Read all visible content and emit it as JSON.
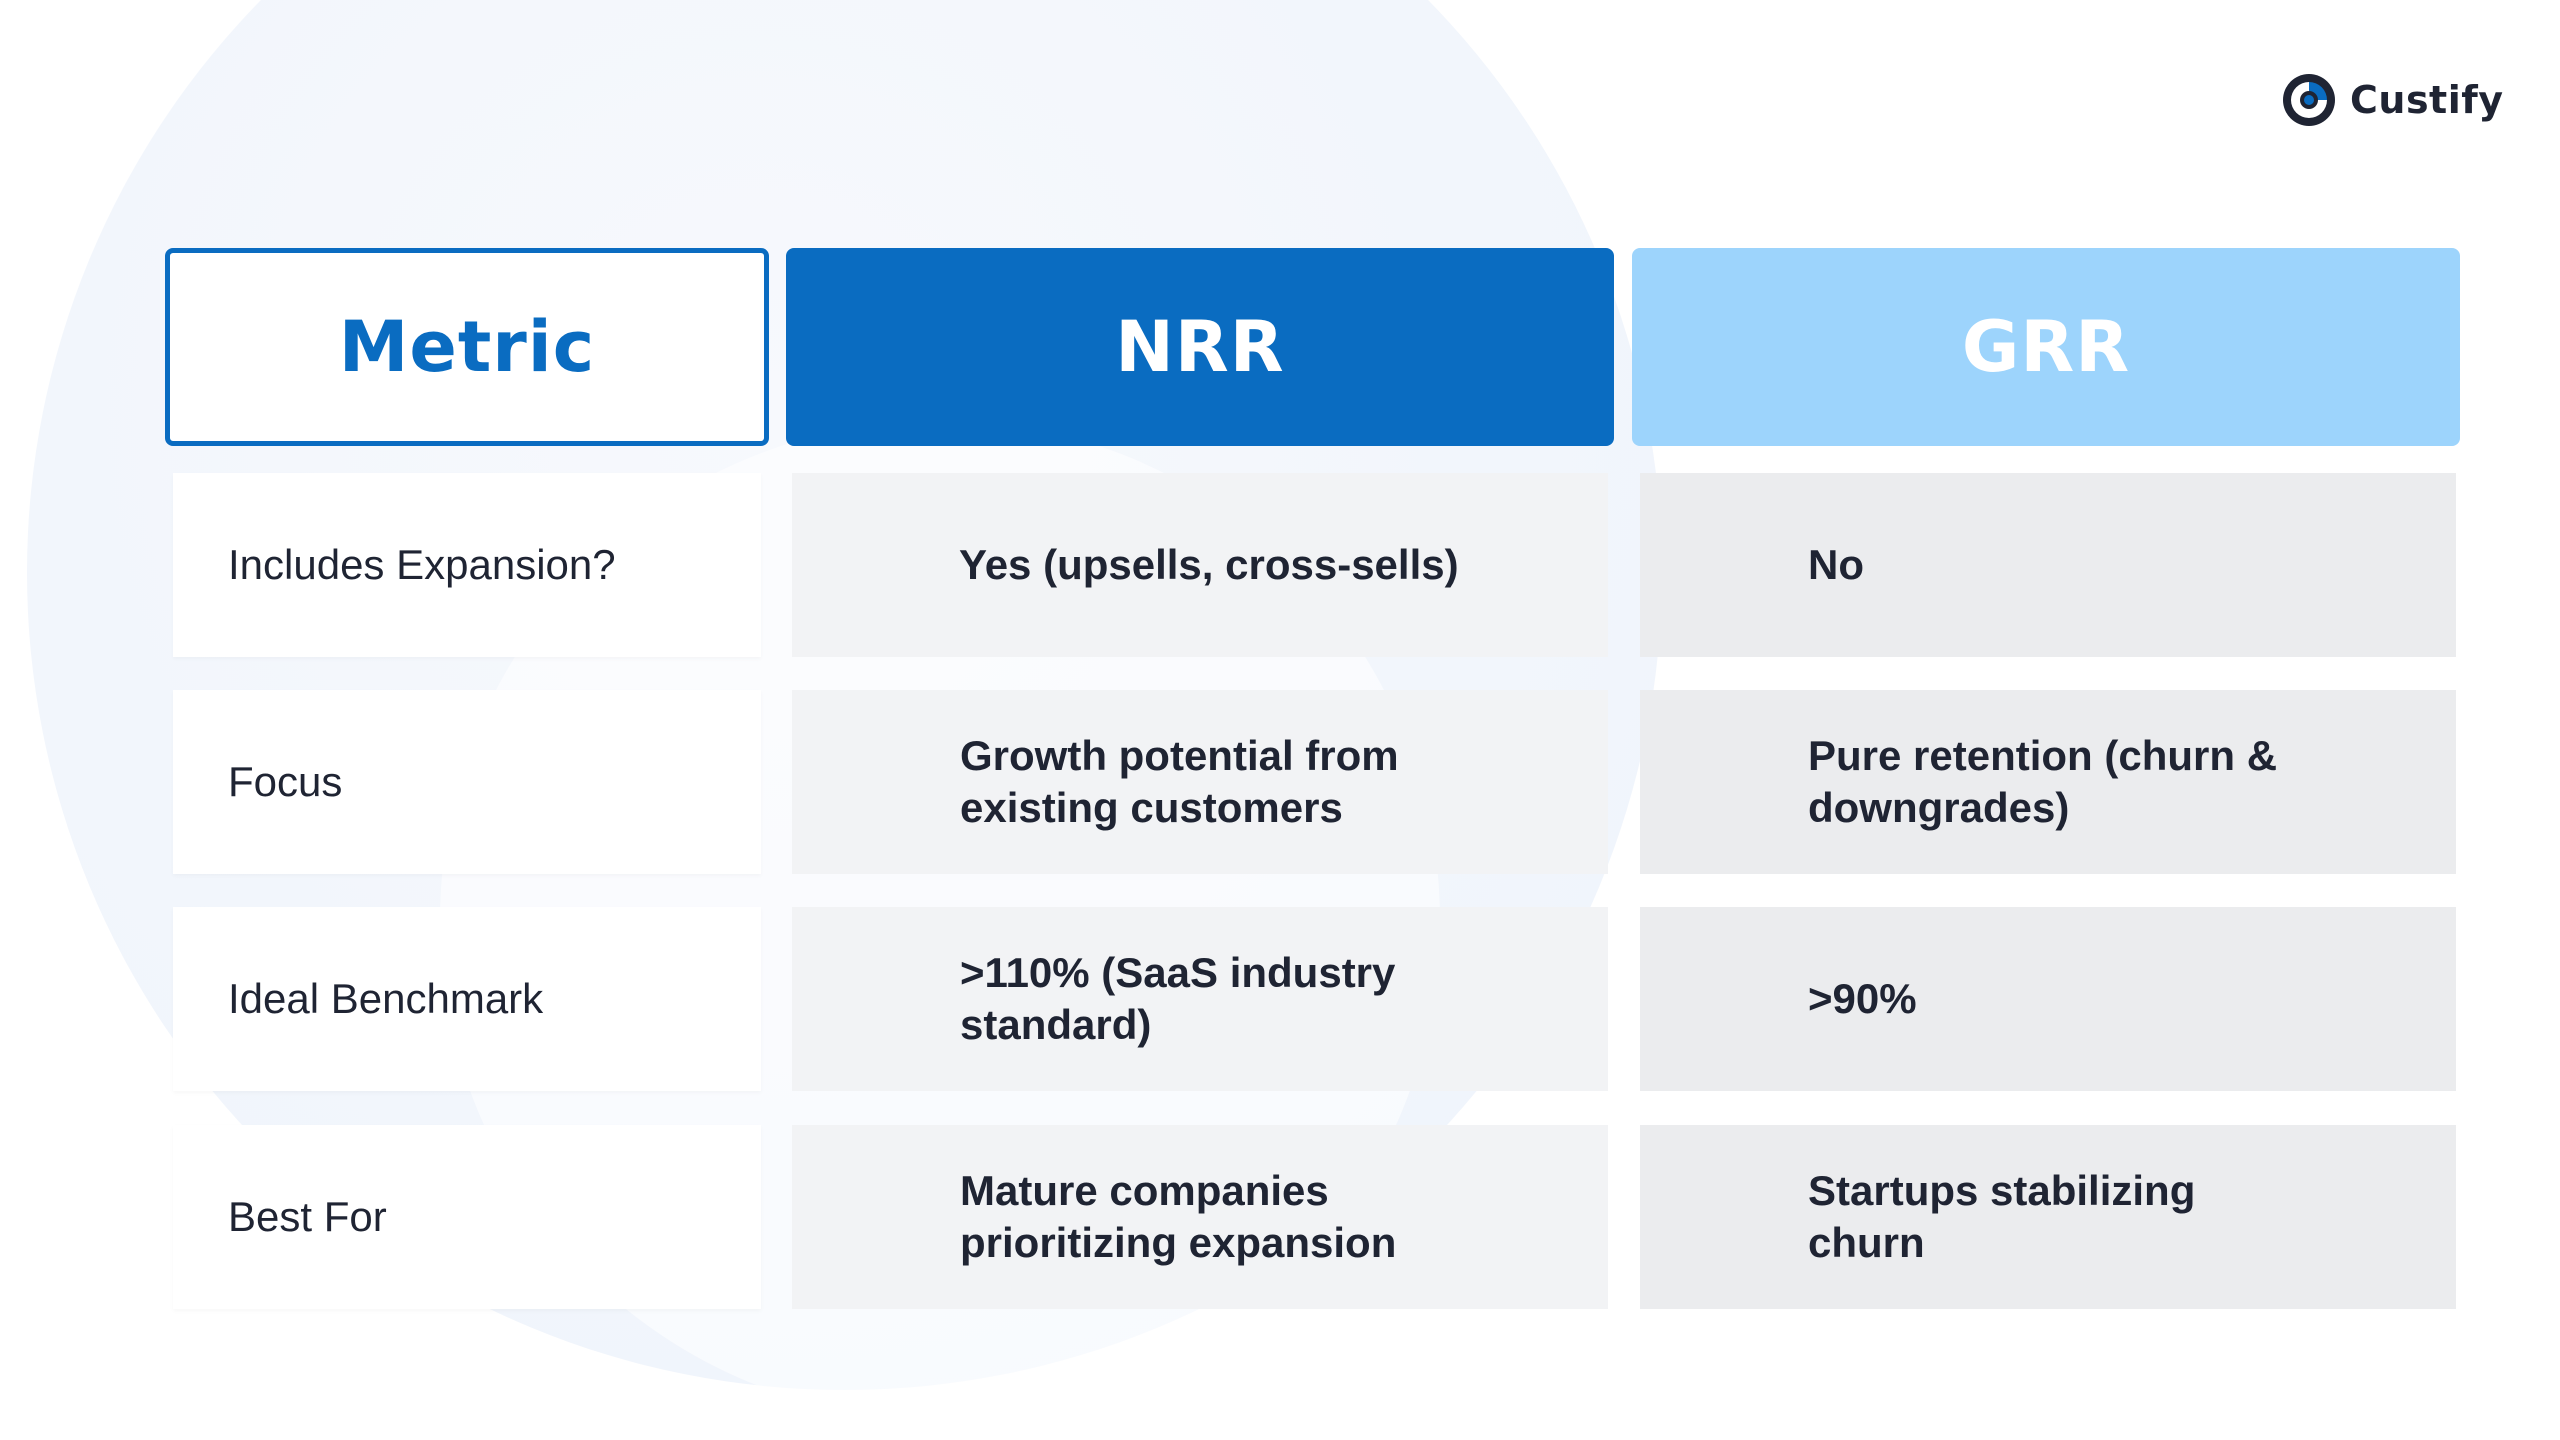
{
  "brand": {
    "name": "Custify",
    "logo_icon": "custify-logo-icon",
    "colors": {
      "primary": "#0a6cc1",
      "light": "#9dd4fc",
      "text": "#1f2433"
    }
  },
  "table": {
    "headers": {
      "metric": "Metric",
      "nrr": "NRR",
      "grr": "GRR"
    },
    "rows": [
      {
        "metric": "Includes Expansion?",
        "nrr": "Yes (upsells, cross-sells)",
        "grr": "No"
      },
      {
        "metric": "Focus",
        "nrr": "Growth potential from existing customers",
        "grr": "Pure retention (churn & downgrades)"
      },
      {
        "metric": "Ideal Benchmark",
        "nrr": ">110% (SaaS industry standard)",
        "grr": ">90%"
      },
      {
        "metric": "Best For",
        "nrr": "Mature companies prioritizing expansion",
        "grr": "Startups stabilizing churn"
      }
    ]
  }
}
